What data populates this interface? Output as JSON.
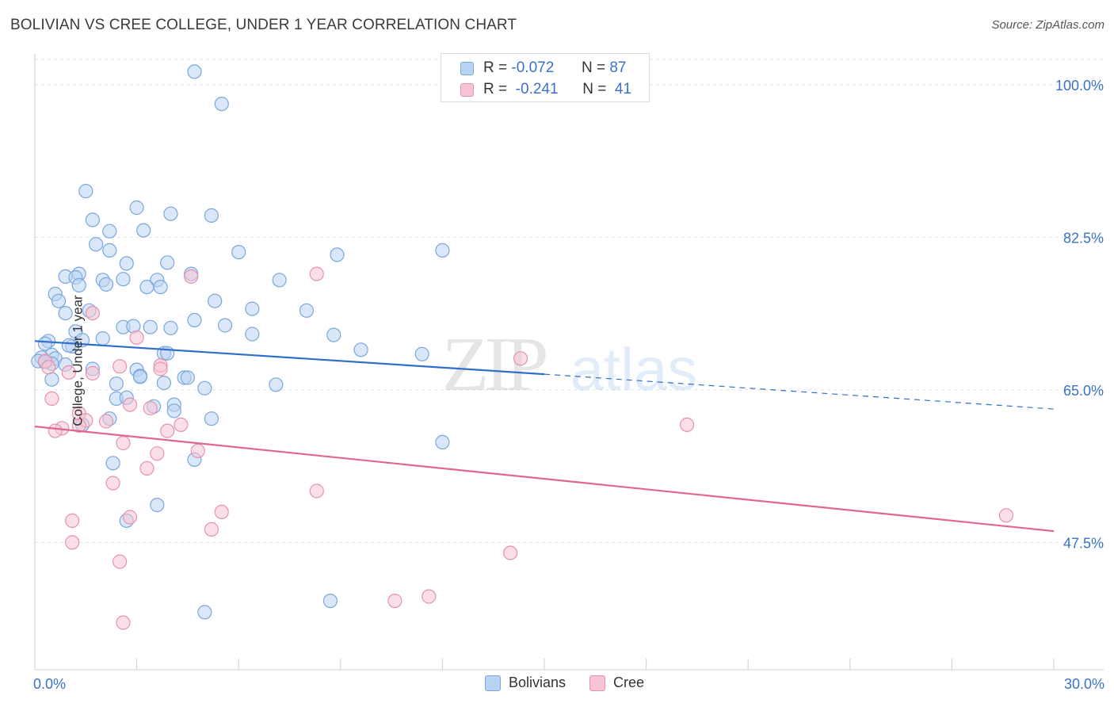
{
  "title": "BOLIVIAN VS CREE COLLEGE, UNDER 1 YEAR CORRELATION CHART",
  "source": "Source: ZipAtlas.com",
  "watermark": {
    "zip": "ZIP",
    "atlas": "atlas"
  },
  "legend_top": [
    {
      "r_label": "R =",
      "r_value": "-0.072",
      "n_label": "N =",
      "n_value": "87"
    },
    {
      "r_label": "R =",
      "r_value": "-0.241",
      "n_label": "N =",
      "n_value": "41"
    }
  ],
  "legend_bottom": [
    {
      "label": "Bolivians"
    },
    {
      "label": "Cree"
    }
  ],
  "colors": {
    "blue_fill": "#b9d3f2",
    "blue_stroke": "#7aa7de",
    "blue_line": "#2f6fc9",
    "pink_fill": "#f6c4d4",
    "pink_stroke": "#e792b0",
    "pink_line": "#e0678f",
    "tick_label": "#3a72c8",
    "grid": "#e3e3e3"
  },
  "chart_data": {
    "type": "scatter",
    "title": "BOLIVIAN VS CREE COLLEGE, UNDER 1 YEAR CORRELATION CHART",
    "xlabel": "",
    "ylabel": "College, Under 1 year",
    "xlim": [
      0,
      30
    ],
    "ylim": [
      32.9,
      102.9
    ],
    "x_tick_labels": [
      {
        "value": 0,
        "label": "0.0%"
      },
      {
        "value": 30,
        "label": "30.0%"
      }
    ],
    "y_tick_labels": [
      {
        "value": 100,
        "label": "100.0%"
      },
      {
        "value": 82.5,
        "label": "82.5%"
      },
      {
        "value": 65,
        "label": "65.0%"
      },
      {
        "value": 47.5,
        "label": "47.5%"
      }
    ],
    "grid": true,
    "series": [
      {
        "name": "Bolivians",
        "r": -0.072,
        "n": 87,
        "trend": {
          "x_solid": [
            0,
            15
          ],
          "y_solid": [
            70.6,
            66.8
          ],
          "x_dashed": [
            15,
            30
          ],
          "y_dashed": [
            66.8,
            62.8
          ]
        },
        "points": [
          [
            4.7,
            101.5
          ],
          [
            5.5,
            97.8
          ],
          [
            1.5,
            87.8
          ],
          [
            3.0,
            85.9
          ],
          [
            4.0,
            85.2
          ],
          [
            5.2,
            85.0
          ],
          [
            1.7,
            84.5
          ],
          [
            3.2,
            83.3
          ],
          [
            2.2,
            83.2
          ],
          [
            1.8,
            81.7
          ],
          [
            2.2,
            81.0
          ],
          [
            6.0,
            80.8
          ],
          [
            8.9,
            80.5
          ],
          [
            12.0,
            81.0
          ],
          [
            3.9,
            79.6
          ],
          [
            2.7,
            79.5
          ],
          [
            1.3,
            78.3
          ],
          [
            4.6,
            78.3
          ],
          [
            0.9,
            78.0
          ],
          [
            1.2,
            77.9
          ],
          [
            2.6,
            77.7
          ],
          [
            3.6,
            77.6
          ],
          [
            2.0,
            77.6
          ],
          [
            7.2,
            77.6
          ],
          [
            2.1,
            77.1
          ],
          [
            1.3,
            77.0
          ],
          [
            3.3,
            76.8
          ],
          [
            3.7,
            76.8
          ],
          [
            0.6,
            76.0
          ],
          [
            5.3,
            75.2
          ],
          [
            0.7,
            75.2
          ],
          [
            6.4,
            74.3
          ],
          [
            8.0,
            74.1
          ],
          [
            1.6,
            74.1
          ],
          [
            0.9,
            73.8
          ],
          [
            4.7,
            73.0
          ],
          [
            5.6,
            72.4
          ],
          [
            2.6,
            72.2
          ],
          [
            2.9,
            72.3
          ],
          [
            3.4,
            72.2
          ],
          [
            4.0,
            72.1
          ],
          [
            1.2,
            71.7
          ],
          [
            6.4,
            71.4
          ],
          [
            8.8,
            71.3
          ],
          [
            1.4,
            70.7
          ],
          [
            2.0,
            70.9
          ],
          [
            0.4,
            70.6
          ],
          [
            0.3,
            70.3
          ],
          [
            1.1,
            70.0
          ],
          [
            1.0,
            70.1
          ],
          [
            9.6,
            69.6
          ],
          [
            11.4,
            69.1
          ],
          [
            3.8,
            69.2
          ],
          [
            3.9,
            69.2
          ],
          [
            0.5,
            69.0
          ],
          [
            0.6,
            68.6
          ],
          [
            0.2,
            68.7
          ],
          [
            0.1,
            68.3
          ],
          [
            0.5,
            68.0
          ],
          [
            0.9,
            67.9
          ],
          [
            0.3,
            68.2
          ],
          [
            3.0,
            67.3
          ],
          [
            1.7,
            67.4
          ],
          [
            3.1,
            66.6
          ],
          [
            3.1,
            66.5
          ],
          [
            4.4,
            66.4
          ],
          [
            4.5,
            66.4
          ],
          [
            3.8,
            65.8
          ],
          [
            2.4,
            65.7
          ],
          [
            5.0,
            65.2
          ],
          [
            7.1,
            65.6
          ],
          [
            0.5,
            66.2
          ],
          [
            2.4,
            64.0
          ],
          [
            2.7,
            64.1
          ],
          [
            4.1,
            63.3
          ],
          [
            3.5,
            63.1
          ],
          [
            4.1,
            62.6
          ],
          [
            2.2,
            61.7
          ],
          [
            1.4,
            61.0
          ],
          [
            12.0,
            59.0
          ],
          [
            5.2,
            61.7
          ],
          [
            2.3,
            56.6
          ],
          [
            4.7,
            57.0
          ],
          [
            3.6,
            51.8
          ],
          [
            2.7,
            50.0
          ],
          [
            5.0,
            39.5
          ],
          [
            8.7,
            40.8
          ]
        ]
      },
      {
        "name": "Cree",
        "r": -0.241,
        "n": 41,
        "trend": {
          "x_solid": [
            0,
            30
          ],
          "y_solid": [
            60.8,
            48.8
          ]
        },
        "points": [
          [
            4.6,
            78.0
          ],
          [
            8.3,
            78.3
          ],
          [
            1.7,
            73.8
          ],
          [
            3.0,
            71.0
          ],
          [
            3.7,
            67.8
          ],
          [
            2.5,
            67.7
          ],
          [
            3.7,
            67.4
          ],
          [
            14.3,
            68.6
          ],
          [
            0.3,
            68.3
          ],
          [
            1.0,
            67.0
          ],
          [
            1.7,
            66.9
          ],
          [
            0.5,
            64.0
          ],
          [
            2.8,
            63.3
          ],
          [
            1.3,
            62.3
          ],
          [
            3.4,
            62.9
          ],
          [
            1.5,
            61.5
          ],
          [
            2.1,
            61.4
          ],
          [
            4.3,
            61.0
          ],
          [
            1.3,
            60.9
          ],
          [
            0.8,
            60.6
          ],
          [
            0.6,
            60.3
          ],
          [
            3.9,
            60.3
          ],
          [
            19.2,
            61.0
          ],
          [
            4.8,
            58.0
          ],
          [
            2.6,
            58.9
          ],
          [
            3.6,
            57.7
          ],
          [
            3.3,
            56.0
          ],
          [
            2.3,
            54.3
          ],
          [
            1.1,
            50.0
          ],
          [
            2.8,
            50.4
          ],
          [
            5.5,
            51.0
          ],
          [
            8.3,
            53.4
          ],
          [
            5.2,
            49.0
          ],
          [
            28.6,
            50.6
          ],
          [
            1.1,
            47.5
          ],
          [
            14.0,
            46.3
          ],
          [
            2.5,
            45.3
          ],
          [
            10.6,
            40.8
          ],
          [
            11.6,
            41.3
          ],
          [
            2.6,
            38.3
          ],
          [
            0.4,
            67.6
          ]
        ]
      }
    ]
  }
}
